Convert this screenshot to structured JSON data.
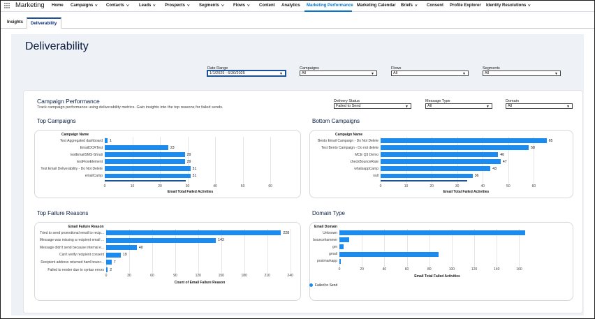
{
  "app": {
    "name": "Marketing"
  },
  "nav": {
    "items": [
      {
        "label": "Home",
        "dropdown": false
      },
      {
        "label": "Campaigns",
        "dropdown": true
      },
      {
        "label": "Contacts",
        "dropdown": true
      },
      {
        "label": "Leads",
        "dropdown": true
      },
      {
        "label": "Prospects",
        "dropdown": true
      },
      {
        "label": "Segments",
        "dropdown": true
      },
      {
        "label": "Flows",
        "dropdown": true
      },
      {
        "label": "Content",
        "dropdown": false
      },
      {
        "label": "Analytics",
        "dropdown": false
      },
      {
        "label": "Marketing Performance",
        "dropdown": false,
        "active": true
      },
      {
        "label": "Marketing Calendar",
        "dropdown": false
      },
      {
        "label": "Briefs",
        "dropdown": true
      },
      {
        "label": "Consent",
        "dropdown": false
      },
      {
        "label": "Profile Explorer",
        "dropdown": false
      },
      {
        "label": "Identity Resolutions",
        "dropdown": true
      }
    ]
  },
  "tabs": [
    {
      "label": "Insights",
      "active": false
    },
    {
      "label": "Deliverability",
      "active": true
    }
  ],
  "page": {
    "title": "Deliverability"
  },
  "filters": {
    "date_range": {
      "label": "Date Range",
      "value": "1/1/2025 - 6/30/2025"
    },
    "campaigns": {
      "label": "Campaigns",
      "value": "All"
    },
    "flows": {
      "label": "Flows",
      "value": "All"
    },
    "segments": {
      "label": "Segments",
      "value": "All"
    }
  },
  "campaign_performance": {
    "title": "Campaign Performance",
    "description": "Track campaign performance using deliverability metrics. Gain insights into the top reasons for failed sends.",
    "filters": {
      "delivery_status": {
        "label": "Delivery Status",
        "value": "Failed to Send"
      },
      "message_type": {
        "label": "Message Type",
        "value": "All"
      },
      "domain": {
        "label": "Domain",
        "value": "All"
      }
    }
  },
  "sections": {
    "top_campaigns": "Top Campaigns",
    "bottom_campaigns": "Bottom Campaigns",
    "top_failure_reasons": "Top Failure Reasons",
    "domain_type": "Domain Type"
  },
  "colors": {
    "bar": "#1b8bef",
    "accent": "#0176d3",
    "title": "#0b1f41"
  },
  "chart_data": [
    {
      "id": "top_campaigns",
      "type": "bar",
      "orientation": "horizontal",
      "category_title": "Campaign Name",
      "categories": [
        "Test Aggregated dashboard",
        "EmailDCRTest",
        "testEmailSMS-Shruti",
        "testFlowElement",
        "Test Email Deliverability - Do Not Delete",
        "emailCamp"
      ],
      "values": [
        1,
        23,
        29,
        29,
        31,
        31
      ],
      "xlabel": "Email Total Failed Activities",
      "xticks": [
        0,
        10,
        20,
        30,
        40,
        50,
        60
      ],
      "xlim": [
        0,
        62
      ]
    },
    {
      "id": "bottom_campaigns",
      "type": "bar",
      "orientation": "horizontal",
      "category_title": "Campaign Name",
      "categories": [
        "Bento Email Campaign - Do Not Delete",
        "Test Bento Campaign - Do not delete",
        "MCE Q3 Demo",
        "checkBounceRate",
        "whatsappCamp",
        "null"
      ],
      "values": [
        65,
        58,
        46,
        47,
        43,
        36
      ],
      "xlabel": "Email Total Failed Activities",
      "xticks": [
        0,
        10,
        20,
        30,
        40,
        50,
        60
      ],
      "xlim": [
        0,
        67
      ]
    },
    {
      "id": "top_failure_reasons",
      "type": "bar",
      "orientation": "horizontal",
      "category_title": "Email Failure Reason",
      "categories": [
        "Tried to send promotional email to recip...",
        "Message was missing a recipient email ...",
        "Message didn't send because internal e...",
        "Can't verify recipient consent",
        "Recipient address returned hard bounc...",
        "Failed to render due to syntax errors"
      ],
      "values": [
        228,
        143,
        40,
        19,
        7,
        2
      ],
      "xlabel": "Count of Email Failure Reason",
      "xticks": [
        0,
        30,
        60,
        90,
        120,
        150,
        180,
        210,
        240
      ],
      "xlim": [
        0,
        244
      ]
    },
    {
      "id": "domain_type",
      "type": "bar",
      "orientation": "horizontal",
      "category_title": "Email Domain",
      "categories": [
        "Unknown",
        "bouncehammer",
        "gm",
        "gmail",
        "postmarkapp"
      ],
      "values": [
        165,
        9,
        4,
        88,
        1
      ],
      "xlabel": "Email Total Failed Activities",
      "xticks": [
        0,
        20,
        40,
        60,
        80,
        100,
        120,
        140,
        160
      ],
      "xlim": [
        0,
        174
      ],
      "series": [
        {
          "name": "Failed to Send"
        }
      ]
    }
  ]
}
